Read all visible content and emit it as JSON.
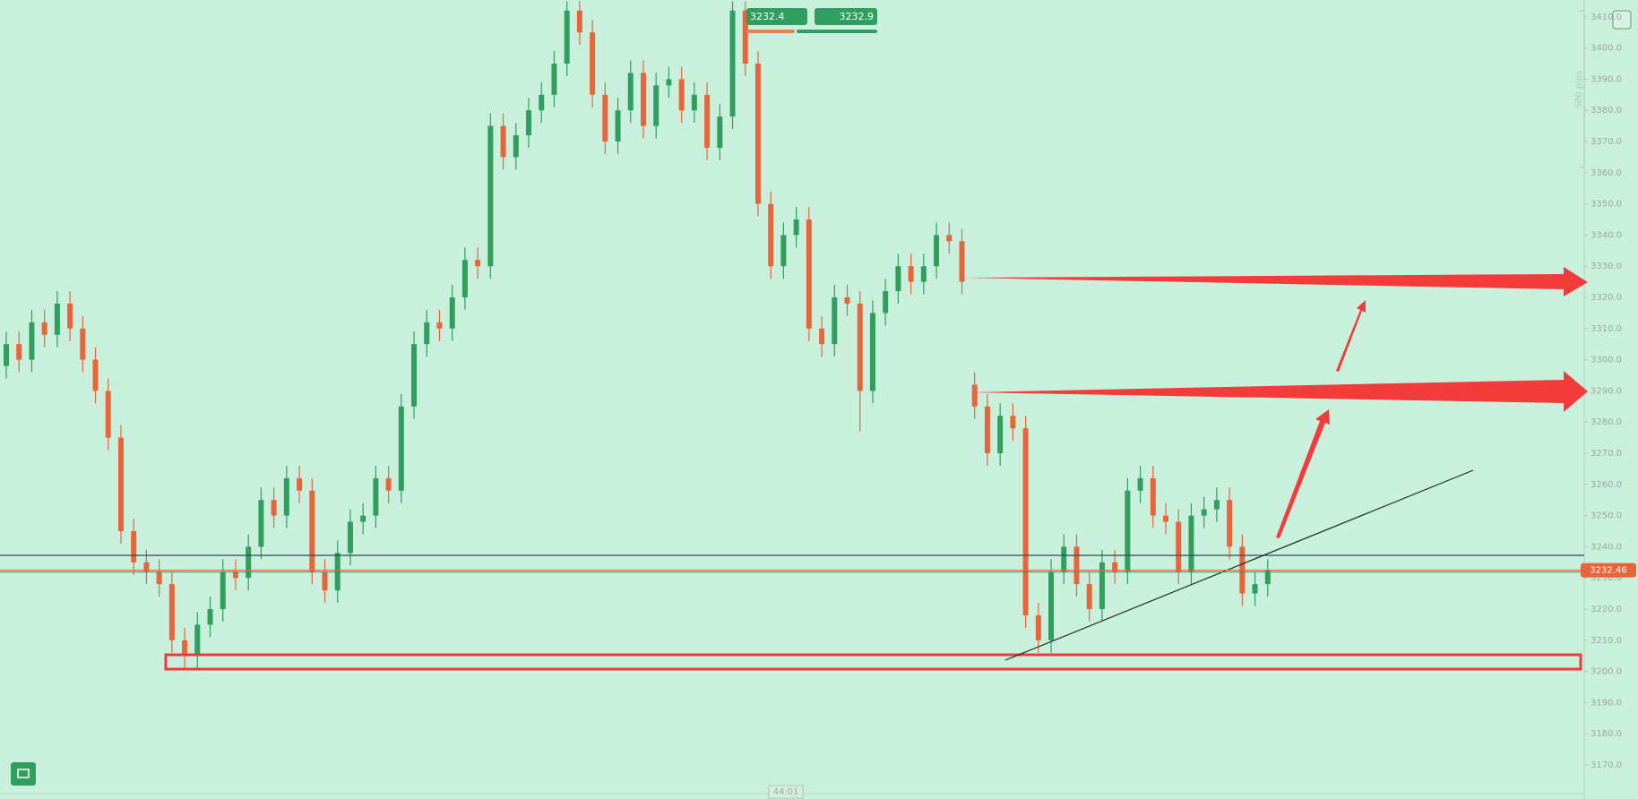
{
  "chart_data": {
    "type": "candlestick",
    "open": [
      3298,
      3305,
      3300,
      3312,
      3308,
      3318,
      3310,
      3300,
      3290,
      3275,
      3245,
      3235,
      3232,
      3228,
      3210,
      3205,
      3215,
      3220,
      3232,
      3230,
      3240,
      3255,
      3250,
      3262,
      3258,
      3232,
      3226,
      3238,
      3248,
      3250,
      3262,
      3258,
      3285,
      3305,
      3312,
      3310,
      3320,
      3332,
      3330,
      3375,
      3365,
      3372,
      3380,
      3385,
      3395,
      3412,
      3405,
      3385,
      3370,
      3380,
      3392,
      3375,
      3388,
      3390,
      3380,
      3385,
      3368,
      3378,
      3412,
      3395,
      3350,
      3330,
      3340,
      3345,
      3310,
      3305,
      3320,
      3318,
      3290,
      3315,
      3322,
      3330,
      3325,
      3330,
      3340,
      3338,
      3292,
      3285,
      3270,
      3282,
      3278,
      3218,
      3210,
      3232,
      3240,
      3228,
      3220,
      3235,
      3232,
      3258,
      3262,
      3250,
      3248,
      3232,
      3250,
      3252,
      3255,
      3240,
      3225,
      3228
    ],
    "high": [
      3309,
      3309,
      3316,
      3316,
      3322,
      3322,
      3314,
      3304,
      3294,
      3279,
      3249,
      3239,
      3236,
      3232,
      3214,
      3219,
      3224,
      3236,
      3236,
      3244,
      3259,
      3259,
      3266,
      3266,
      3262,
      3236,
      3242,
      3252,
      3254,
      3266,
      3266,
      3289,
      3309,
      3316,
      3316,
      3324,
      3336,
      3336,
      3379,
      3379,
      3376,
      3384,
      3389,
      3399,
      3415,
      3415,
      3409,
      3389,
      3384,
      3396,
      3396,
      3392,
      3394,
      3394,
      3389,
      3389,
      3382,
      3415,
      3415,
      3399,
      3354,
      3344,
      3349,
      3349,
      3314,
      3324,
      3324,
      3322,
      3319,
      3326,
      3334,
      3334,
      3334,
      3344,
      3344,
      3342,
      3296,
      3289,
      3286,
      3286,
      3282,
      3222,
      3236,
      3244,
      3244,
      3232,
      3239,
      3239,
      3262,
      3266,
      3266,
      3254,
      3252,
      3254,
      3256,
      3259,
      3259,
      3244,
      3232,
      3236
    ],
    "low": [
      3294,
      3296,
      3296,
      3304,
      3304,
      3306,
      3296,
      3286,
      3271,
      3241,
      3231,
      3228,
      3224,
      3206,
      3201,
      3201,
      3211,
      3216,
      3226,
      3226,
      3236,
      3246,
      3246,
      3254,
      3228,
      3222,
      3222,
      3234,
      3244,
      3246,
      3254,
      3254,
      3281,
      3301,
      3306,
      3306,
      3316,
      3326,
      3326,
      3361,
      3361,
      3368,
      3376,
      3381,
      3391,
      3401,
      3381,
      3366,
      3366,
      3376,
      3371,
      3371,
      3384,
      3376,
      3376,
      3364,
      3364,
      3374,
      3391,
      3346,
      3326,
      3326,
      3336,
      3306,
      3301,
      3301,
      3314,
      3277,
      3286,
      3311,
      3318,
      3321,
      3321,
      3326,
      3334,
      3321,
      3281,
      3266,
      3266,
      3274,
      3214,
      3206,
      3206,
      3228,
      3224,
      3216,
      3216,
      3228,
      3228,
      3254,
      3246,
      3244,
      3228,
      3228,
      3246,
      3248,
      3236,
      3221,
      3221,
      3224
    ],
    "close": [
      3305,
      3300,
      3312,
      3308,
      3318,
      3310,
      3300,
      3290,
      3275,
      3245,
      3235,
      3232,
      3228,
      3210,
      3205,
      3215,
      3220,
      3232,
      3230,
      3240,
      3255,
      3250,
      3262,
      3258,
      3232,
      3226,
      3238,
      3248,
      3250,
      3262,
      3258,
      3285,
      3305,
      3312,
      3310,
      3320,
      3332,
      3330,
      3375,
      3365,
      3372,
      3380,
      3385,
      3395,
      3412,
      3405,
      3385,
      3370,
      3380,
      3392,
      3375,
      3388,
      3390,
      3380,
      3385,
      3368,
      3378,
      3412,
      3395,
      3350,
      3330,
      3340,
      3345,
      3310,
      3305,
      3320,
      3318,
      3290,
      3315,
      3322,
      3330,
      3325,
      3330,
      3340,
      3338,
      3325,
      3285,
      3270,
      3282,
      3278,
      3218,
      3210,
      3232,
      3240,
      3228,
      3220,
      3235,
      3232,
      3258,
      3262,
      3250,
      3248,
      3232,
      3250,
      3252,
      3255,
      3240,
      3225,
      3228,
      3232.46
    ],
    "up_color": "#2f9e5f",
    "down_color": "#e8653a",
    "last_price": 3232.46,
    "last_price_color": "#e8653a",
    "ylim": [
      3160.8,
      3415.4
    ],
    "yticks": [
      {
        "value": 3170,
        "label": "3170.0"
      },
      {
        "value": 3180,
        "label": "3180.0"
      },
      {
        "value": 3190,
        "label": "3190.0"
      },
      {
        "value": 3200,
        "label": "3200.0"
      },
      {
        "value": 3210,
        "label": "3210.0"
      },
      {
        "value": 3220,
        "label": "3220.0"
      },
      {
        "value": 3230,
        "label": "3230.0"
      },
      {
        "value": 3240,
        "label": "3240.0"
      },
      {
        "value": 3250,
        "label": "3250.0"
      },
      {
        "value": 3260,
        "label": "3260.0"
      },
      {
        "value": 3270,
        "label": "3270.0"
      },
      {
        "value": 3280,
        "label": "3280.0"
      },
      {
        "value": 3290,
        "label": "3290.0"
      },
      {
        "value": 3300,
        "label": "3300.0"
      },
      {
        "value": 3310,
        "label": "3310.0"
      },
      {
        "value": 3320,
        "label": "3320.0"
      },
      {
        "value": 3330,
        "label": "3330.0"
      },
      {
        "value": 3340,
        "label": "3340.0"
      },
      {
        "value": 3350,
        "label": "3350.0"
      },
      {
        "value": 3360,
        "label": "3360.0"
      },
      {
        "value": 3370,
        "label": "3370.0"
      },
      {
        "value": 3380,
        "label": "3380.0"
      },
      {
        "value": 3390,
        "label": "3390.0"
      },
      {
        "value": 3400,
        "label": "3400.0"
      },
      {
        "value": 3410,
        "label": "3410.0"
      }
    ],
    "sell_price": "3232.4",
    "buy_price": "3232.9",
    "scale_label": "500 pips",
    "timer": "44:01"
  }
}
